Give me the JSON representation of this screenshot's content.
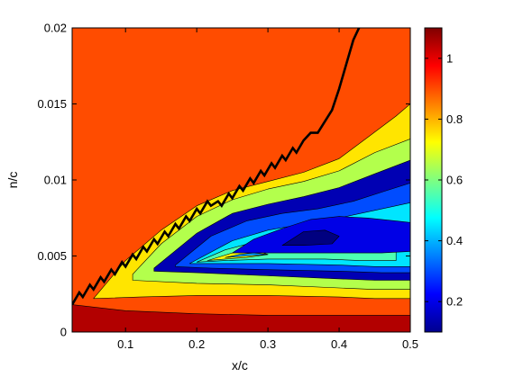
{
  "chart_data": {
    "type": "contourf",
    "title": "",
    "xlabel": "x/c",
    "ylabel": "n/c",
    "xlim": [
      0.025,
      0.5
    ],
    "ylim": [
      0,
      0.02
    ],
    "x_ticks": [
      0.1,
      0.2,
      0.3,
      0.4,
      0.5
    ],
    "x_tick_labels": [
      "0.1",
      "0.2",
      "0.3",
      "0.4",
      "0.5"
    ],
    "y_ticks": [
      0,
      0.005,
      0.01,
      0.015,
      0.02
    ],
    "y_tick_labels": [
      "0",
      "0.005",
      "0.01",
      "0.015",
      "0.02"
    ],
    "colormap": "jet",
    "clim": [
      0.1,
      1.1
    ],
    "colorbar_ticks": [
      0.2,
      0.4,
      0.6,
      0.8,
      1
    ],
    "colorbar_tick_labels": [
      "0.2",
      "0.4",
      "0.6",
      "0.8",
      "1"
    ],
    "background_value": 0.9,
    "contour_regions": [
      {
        "value": 1.05,
        "x": [
          0.025,
          0.1,
          0.2,
          0.3,
          0.4,
          0.5,
          0.5,
          0.4,
          0.3,
          0.2,
          0.1,
          0.025
        ],
        "y": [
          0.0018,
          0.0014,
          0.0012,
          0.0011,
          0.0011,
          0.0011,
          0,
          0,
          0,
          0,
          0,
          0
        ]
      },
      {
        "value": 0.75,
        "x": [
          0.055,
          0.1,
          0.15,
          0.2,
          0.25,
          0.3,
          0.35,
          0.4,
          0.44,
          0.48,
          0.5,
          0.5,
          0.45,
          0.4,
          0.3,
          0.2,
          0.12,
          0.055
        ],
        "y": [
          0.0022,
          0.0047,
          0.0067,
          0.0083,
          0.0093,
          0.0099,
          0.0105,
          0.0114,
          0.0128,
          0.0142,
          0.015,
          0.0022,
          0.0022,
          0.0023,
          0.0024,
          0.0024,
          0.0023,
          0.0022
        ]
      },
      {
        "value": 0.65,
        "x": [
          0.11,
          0.15,
          0.2,
          0.25,
          0.3,
          0.35,
          0.4,
          0.45,
          0.5,
          0.5,
          0.45,
          0.4,
          0.3,
          0.2,
          0.11
        ],
        "y": [
          0.0038,
          0.0058,
          0.0076,
          0.0087,
          0.0094,
          0.0099,
          0.0106,
          0.0118,
          0.0127,
          0.0028,
          0.0028,
          0.0029,
          0.0031,
          0.0032,
          0.0034
        ]
      },
      {
        "value": 0.15,
        "x": [
          0.14,
          0.2,
          0.25,
          0.3,
          0.35,
          0.4,
          0.45,
          0.5,
          0.5,
          0.45,
          0.4,
          0.3,
          0.2,
          0.14
        ],
        "y": [
          0.0042,
          0.0065,
          0.0078,
          0.0084,
          0.0089,
          0.0095,
          0.0104,
          0.0113,
          0.0034,
          0.0034,
          0.0035,
          0.0037,
          0.0039,
          0.004
        ]
      },
      {
        "value": 0.3,
        "x": [
          0.17,
          0.22,
          0.27,
          0.32,
          0.37,
          0.42,
          0.46,
          0.5,
          0.5,
          0.46,
          0.4,
          0.3,
          0.22,
          0.17
        ],
        "y": [
          0.0044,
          0.0063,
          0.0073,
          0.0078,
          0.0081,
          0.0086,
          0.0092,
          0.0098,
          0.0039,
          0.0039,
          0.004,
          0.0041,
          0.0042,
          0.0043
        ]
      },
      {
        "value": 0.45,
        "x": [
          0.19,
          0.25,
          0.3,
          0.35,
          0.4,
          0.45,
          0.5,
          0.5,
          0.45,
          0.4,
          0.3,
          0.24,
          0.19
        ],
        "y": [
          0.0045,
          0.006,
          0.0067,
          0.0071,
          0.0075,
          0.008,
          0.0085,
          0.0043,
          0.0043,
          0.0044,
          0.0045,
          0.0045,
          0.0045
        ]
      },
      {
        "value": 0.55,
        "x": [
          0.2,
          0.24,
          0.28,
          0.33,
          0.38,
          0.43,
          0.48,
          0.48,
          0.43,
          0.38,
          0.3,
          0.24,
          0.2
        ],
        "y": [
          0.0046,
          0.0054,
          0.0059,
          0.0062,
          0.0063,
          0.0066,
          0.0068,
          0.0047,
          0.0047,
          0.0048,
          0.0048,
          0.0047,
          0.0046
        ]
      },
      {
        "value": 0.72,
        "x": [
          0.215,
          0.25,
          0.28,
          0.3,
          0.27,
          0.24,
          0.215
        ],
        "y": [
          0.0047,
          0.0052,
          0.0054,
          0.0051,
          0.0049,
          0.0048,
          0.0047
        ]
      },
      {
        "value": 0.38,
        "x": [
          0.24,
          0.26,
          0.28,
          0.3,
          0.27,
          0.24
        ],
        "y": [
          0.0049,
          0.0051,
          0.0052,
          0.0051,
          0.005,
          0.0049
        ]
      },
      {
        "value": 0.2,
        "x": [
          0.25,
          0.28,
          0.32,
          0.36,
          0.4,
          0.44,
          0.48,
          0.5,
          0.5,
          0.46,
          0.42,
          0.38,
          0.34,
          0.3,
          0.27,
          0.25
        ],
        "y": [
          0.0052,
          0.0061,
          0.0068,
          0.0074,
          0.0076,
          0.0075,
          0.0073,
          0.0072,
          0.0053,
          0.0052,
          0.0052,
          0.0052,
          0.0052,
          0.0052,
          0.0052,
          0.0052
        ]
      },
      {
        "value": 0.1,
        "x": [
          0.32,
          0.35,
          0.38,
          0.4,
          0.39,
          0.35,
          0.32
        ],
        "y": [
          0.0057,
          0.0066,
          0.0067,
          0.0063,
          0.0058,
          0.0057,
          0.0057
        ]
      }
    ],
    "boundary_line": {
      "color": "#000000",
      "x": [
        0.025,
        0.035,
        0.04,
        0.05,
        0.055,
        0.065,
        0.07,
        0.08,
        0.085,
        0.095,
        0.1,
        0.11,
        0.115,
        0.125,
        0.13,
        0.14,
        0.145,
        0.155,
        0.16,
        0.17,
        0.175,
        0.185,
        0.19,
        0.2,
        0.205,
        0.215,
        0.22,
        0.23,
        0.235,
        0.245,
        0.25,
        0.26,
        0.265,
        0.275,
        0.28,
        0.29,
        0.295,
        0.305,
        0.31,
        0.32,
        0.325,
        0.335,
        0.34,
        0.35,
        0.36,
        0.37,
        0.39,
        0.4,
        0.41,
        0.42,
        0.43
      ],
      "y": [
        0.0018,
        0.0026,
        0.0023,
        0.0031,
        0.0028,
        0.0036,
        0.0033,
        0.0041,
        0.0038,
        0.0046,
        0.0043,
        0.0051,
        0.0048,
        0.0056,
        0.0053,
        0.0061,
        0.0058,
        0.0066,
        0.0063,
        0.0071,
        0.0068,
        0.0076,
        0.0073,
        0.0081,
        0.0078,
        0.0086,
        0.0083,
        0.0086,
        0.0083,
        0.0091,
        0.0088,
        0.0096,
        0.0093,
        0.0101,
        0.0098,
        0.0106,
        0.0103,
        0.0111,
        0.0108,
        0.0116,
        0.0113,
        0.0121,
        0.0118,
        0.0126,
        0.0131,
        0.0131,
        0.0146,
        0.016,
        0.0176,
        0.0192,
        0.0202
      ]
    }
  }
}
